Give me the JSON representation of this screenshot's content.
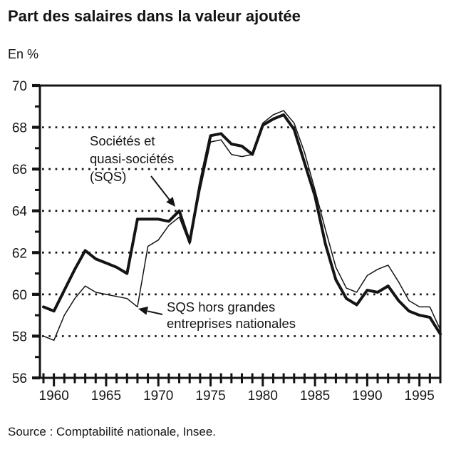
{
  "page": {
    "title": "Part des salaires dans la valeur ajoutée",
    "unit_label": "En %",
    "source_note": "Source : Comptabilité nationale, Insee."
  },
  "chart_data": {
    "type": "line",
    "title": "Part des salaires dans la valeur ajoutée",
    "ylabel": "En %",
    "xlim": [
      1959,
      1997
    ],
    "ylim": [
      56,
      70
    ],
    "ytick_labeled": [
      56,
      58,
      60,
      62,
      64,
      66,
      68,
      70
    ],
    "ytick_minor": [
      57,
      59,
      61,
      63,
      65,
      67,
      69
    ],
    "gridlines_dotted_at": [
      58,
      60,
      62,
      64,
      66,
      68
    ],
    "xtick_every_year": true,
    "xtick_labeled": [
      1960,
      1965,
      1970,
      1975,
      1980,
      1985,
      1990,
      1995
    ],
    "grid": "horizontal dotted",
    "legend_position": "inline annotations with arrows",
    "x": [
      1959,
      1960,
      1961,
      1962,
      1963,
      1964,
      1965,
      1966,
      1967,
      1968,
      1969,
      1970,
      1971,
      1972,
      1973,
      1974,
      1975,
      1976,
      1977,
      1978,
      1979,
      1980,
      1981,
      1982,
      1983,
      1984,
      1985,
      1986,
      1987,
      1988,
      1989,
      1990,
      1991,
      1992,
      1993,
      1994,
      1995,
      1996,
      1997
    ],
    "series": [
      {
        "name": "Sociétés et quasi-sociétés (SQS)",
        "line_weight": "thick",
        "values": [
          59.4,
          59.2,
          60.2,
          61.2,
          62.1,
          61.7,
          61.5,
          61.3,
          61.0,
          63.6,
          63.6,
          63.6,
          63.5,
          64.0,
          62.5,
          65.3,
          67.6,
          67.7,
          67.2,
          67.1,
          66.7,
          68.1,
          68.4,
          68.6,
          67.9,
          66.3,
          64.7,
          62.4,
          60.7,
          59.8,
          59.5,
          60.2,
          60.1,
          60.4,
          59.7,
          59.2,
          59.0,
          58.9,
          58.1
        ]
      },
      {
        "name": "SQS hors grandes entreprises nationales",
        "line_weight": "thin",
        "values": [
          58.0,
          57.8,
          59.0,
          59.8,
          60.4,
          60.1,
          60.0,
          59.9,
          59.8,
          59.4,
          62.3,
          62.6,
          63.3,
          63.7,
          62.4,
          65.0,
          67.3,
          67.4,
          66.7,
          66.6,
          66.7,
          68.2,
          68.6,
          68.8,
          68.2,
          66.8,
          65.0,
          63.1,
          61.3,
          60.3,
          60.1,
          60.9,
          61.2,
          61.4,
          60.6,
          59.7,
          59.4,
          59.4,
          58.3
        ]
      }
    ],
    "annotations": [
      {
        "id": "ann-sqs",
        "lines": [
          "Sociétés et",
          "quasi-sociétés",
          "(SQS)"
        ],
        "points_to": "thick SQS line at 1972 peak (64.0)"
      },
      {
        "id": "ann-hors-gen",
        "lines": [
          "SQS hors grandes",
          "entreprises nationales"
        ],
        "points_to": "thin line at 1968 dip (59.4)"
      }
    ],
    "colors": {
      "ink": "#141414",
      "background": "#ffffff"
    }
  }
}
